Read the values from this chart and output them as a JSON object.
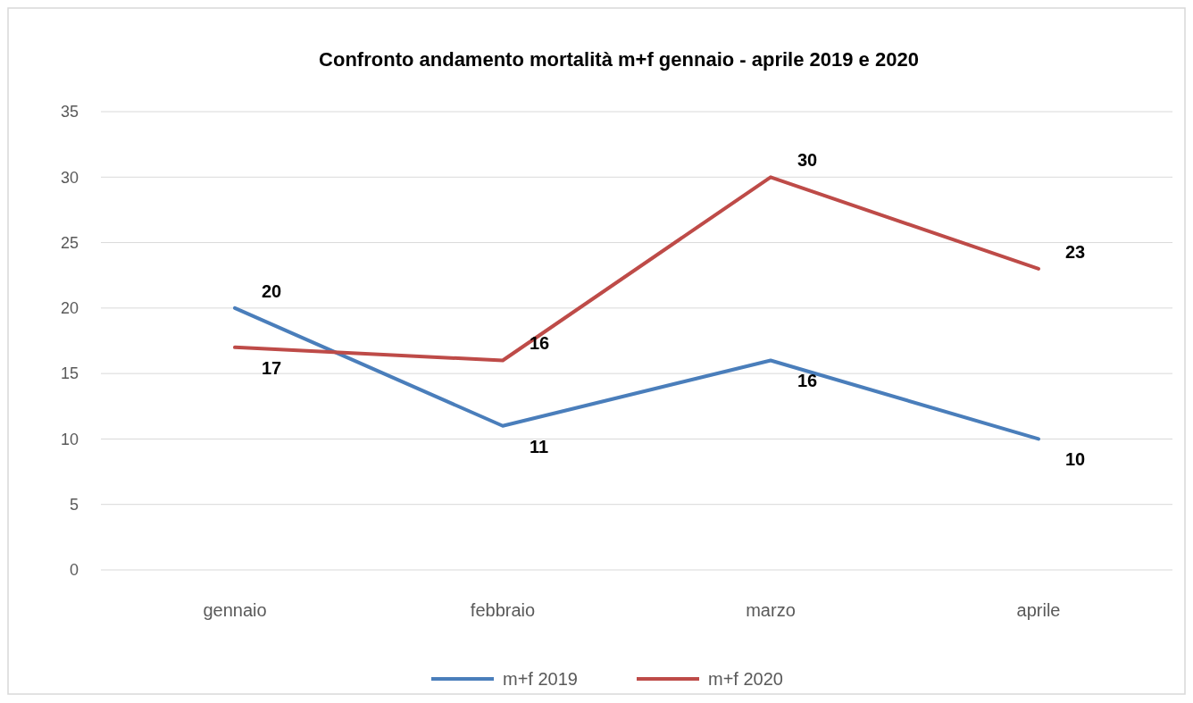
{
  "chart_data": {
    "type": "line",
    "title": "Confronto andamento mortalità m+f  gennaio - aprile 2019 e 2020",
    "categories": [
      "gennaio",
      "febbraio",
      "marzo",
      "aprile"
    ],
    "series": [
      {
        "name": "m+f 2019",
        "color": "#4a7ebb",
        "values": [
          20,
          11,
          16,
          10
        ]
      },
      {
        "name": "m+f 2020",
        "color": "#be4b48",
        "values": [
          17,
          16,
          30,
          23
        ]
      }
    ],
    "ylim": [
      0,
      35
    ],
    "yticks": [
      0,
      5,
      10,
      15,
      20,
      25,
      30,
      35
    ],
    "grid": "y",
    "legend": "bottom",
    "data_labels": true,
    "marker": "none",
    "line_style": "solid"
  }
}
